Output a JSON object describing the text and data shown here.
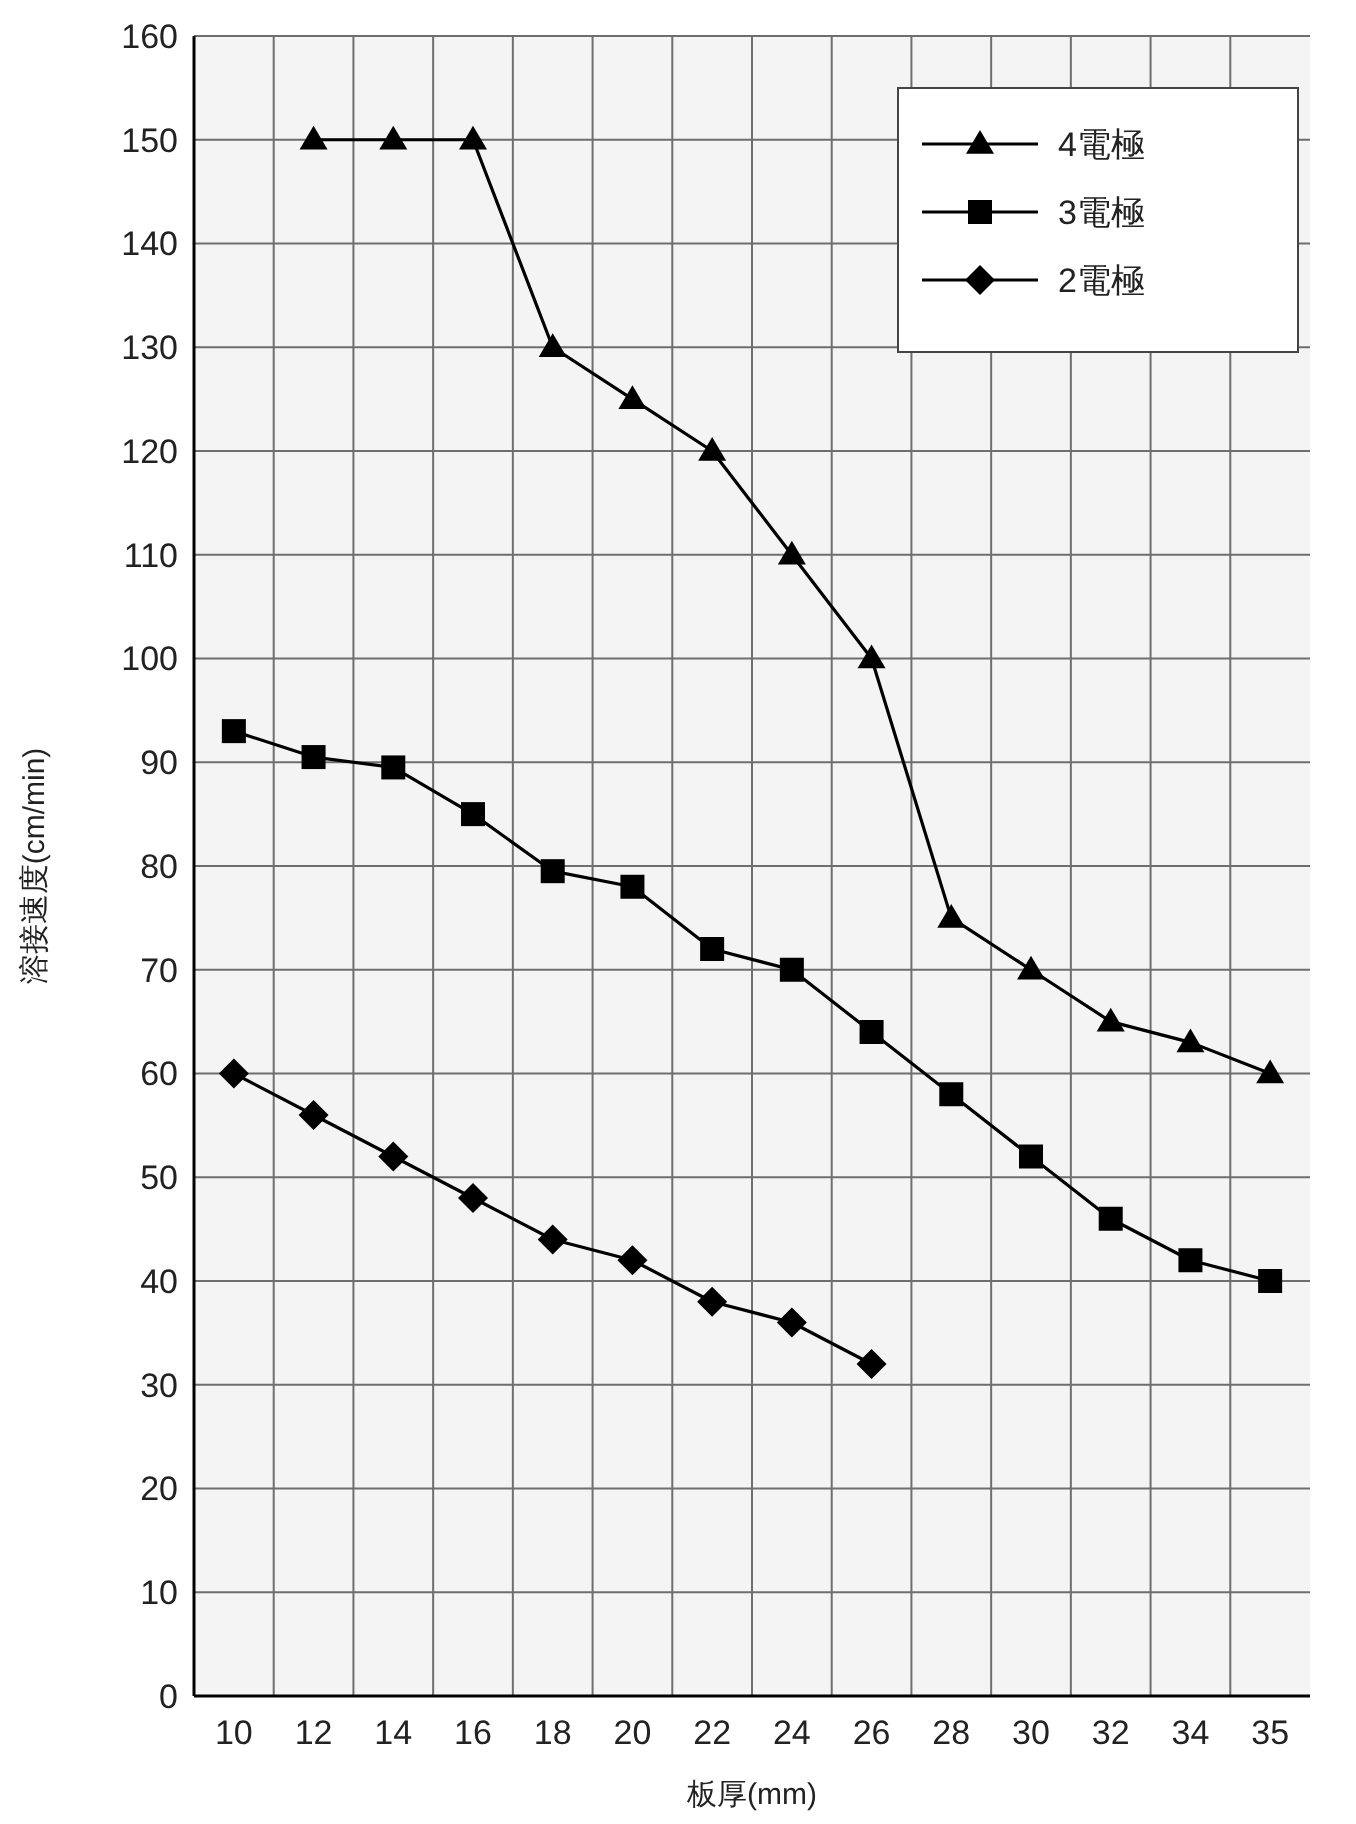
{
  "chart_data": {
    "type": "line",
    "xlabel": "板厚(mm)",
    "ylabel": "溶接速度(cm/min)",
    "categories": [
      "10",
      "12",
      "14",
      "16",
      "18",
      "20",
      "22",
      "24",
      "26",
      "28",
      "30",
      "32",
      "34",
      "35"
    ],
    "series": [
      {
        "name": "4電極",
        "color": "#000000",
        "marker": "triangle",
        "values": [
          null,
          150,
          150,
          150,
          130,
          125,
          120,
          110,
          100,
          75,
          70,
          65,
          63,
          60
        ]
      },
      {
        "name": "3電極",
        "color": "#000000",
        "marker": "square",
        "values": [
          93,
          90.5,
          89.5,
          85,
          79.5,
          78,
          72,
          70,
          64,
          58,
          52,
          46,
          42,
          40
        ]
      },
      {
        "name": "2電極",
        "color": "#000000",
        "marker": "diamond",
        "values": [
          60,
          56,
          52,
          48,
          44,
          42,
          38,
          36,
          32,
          null,
          null,
          null,
          null,
          null
        ]
      }
    ],
    "ylim": [
      0,
      160
    ],
    "yticks": [
      0,
      10,
      20,
      30,
      40,
      50,
      60,
      70,
      80,
      90,
      100,
      110,
      120,
      130,
      140,
      150,
      160
    ],
    "grid": true,
    "legend": "top right",
    "line_style": "solid"
  }
}
